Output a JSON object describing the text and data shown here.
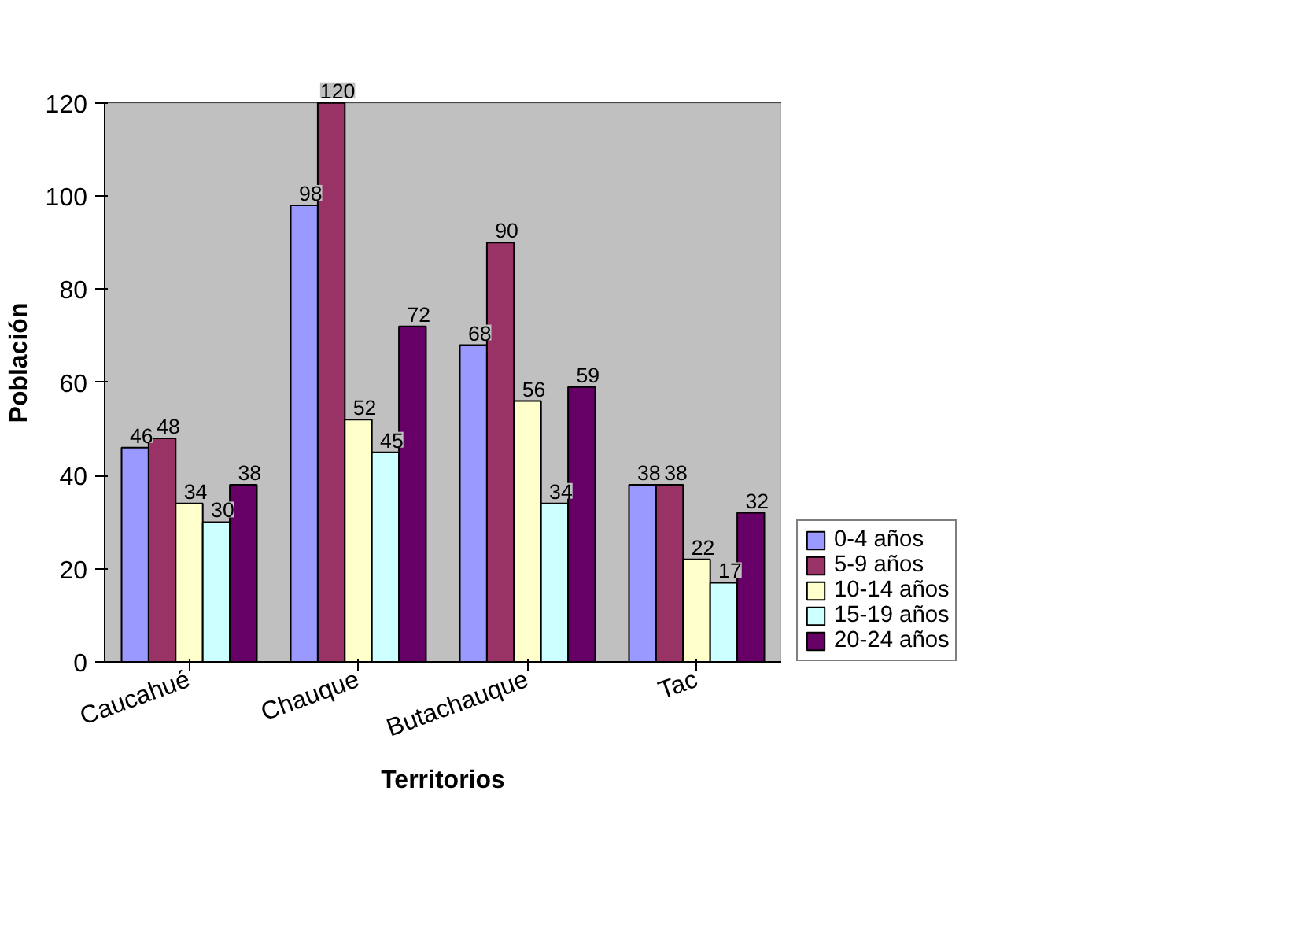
{
  "chart_data": {
    "type": "bar",
    "xlabel": "Territorios",
    "ylabel": "Población",
    "categories": [
      "Caucahué",
      "Chauque",
      "Butachauque",
      "Tac"
    ],
    "series": [
      {
        "name": "0-4 años",
        "color": "#9999ff",
        "values": [
          46,
          98,
          68,
          38
        ]
      },
      {
        "name": "5-9 años",
        "color": "#993366",
        "values": [
          48,
          120,
          90,
          38
        ]
      },
      {
        "name": "10-14 años",
        "color": "#ffffcc",
        "values": [
          34,
          52,
          56,
          22
        ]
      },
      {
        "name": "15-19 años",
        "color": "#ccffff",
        "values": [
          30,
          45,
          34,
          17
        ]
      },
      {
        "name": "20-24 años",
        "color": "#660066",
        "values": [
          38,
          72,
          59,
          32
        ]
      }
    ],
    "ylim": [
      0,
      120
    ],
    "yticks": [
      0,
      20,
      40,
      60,
      80,
      100,
      120
    ],
    "grid": "y",
    "legend": "right",
    "data_labels": true
  }
}
